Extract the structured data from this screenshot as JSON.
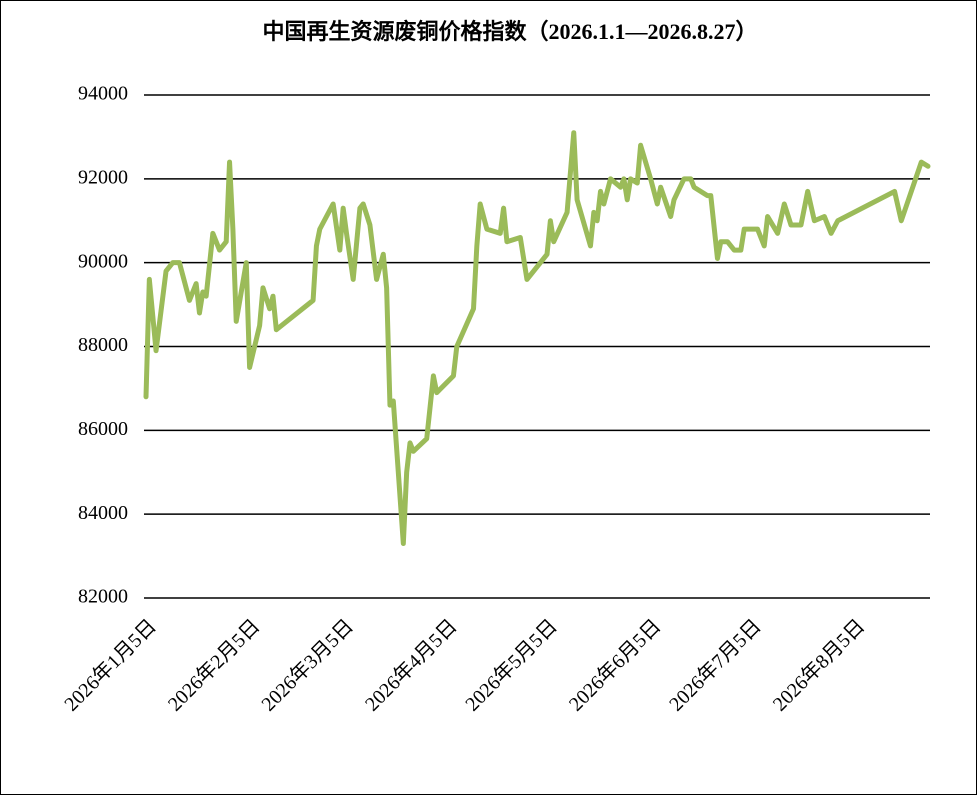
{
  "chart_data": {
    "type": "line",
    "title": "中国再生资源废铜价格指数（2026.1.1—2026.8.27）",
    "x": [
      "2026-01-05",
      "2026-01-06",
      "2026-01-08",
      "2026-01-11",
      "2026-01-13",
      "2026-01-15",
      "2026-01-18",
      "2026-01-20",
      "2026-01-21",
      "2026-01-22",
      "2026-01-23",
      "2026-01-25",
      "2026-01-27",
      "2026-01-29",
      "2026-01-30",
      "2026-01-31",
      "2026-02-01",
      "2026-02-04",
      "2026-02-05",
      "2026-02-08",
      "2026-02-09",
      "2026-02-11",
      "2026-02-12",
      "2026-02-13",
      "2026-02-24",
      "2026-02-25",
      "2026-02-26",
      "2026-03-02",
      "2026-03-04",
      "2026-03-05",
      "2026-03-06",
      "2026-03-08",
      "2026-03-10",
      "2026-03-11",
      "2026-03-13",
      "2026-03-15",
      "2026-03-17",
      "2026-03-18",
      "2026-03-19",
      "2026-03-20",
      "2026-03-23",
      "2026-03-24",
      "2026-03-25",
      "2026-03-26",
      "2026-03-30",
      "2026-04-01",
      "2026-04-02",
      "2026-04-07",
      "2026-04-08",
      "2026-04-13",
      "2026-04-14",
      "2026-04-15",
      "2026-04-17",
      "2026-04-21",
      "2026-04-22",
      "2026-04-23",
      "2026-04-27",
      "2026-04-29",
      "2026-05-05",
      "2026-05-06",
      "2026-05-07",
      "2026-05-11",
      "2026-05-13",
      "2026-05-14",
      "2026-05-18",
      "2026-05-19",
      "2026-05-20",
      "2026-05-21",
      "2026-05-22",
      "2026-05-24",
      "2026-05-27",
      "2026-05-28",
      "2026-05-29",
      "2026-05-30",
      "2026-06-01",
      "2026-06-02",
      "2026-06-05",
      "2026-06-07",
      "2026-06-08",
      "2026-06-11",
      "2026-06-12",
      "2026-06-15",
      "2026-06-17",
      "2026-06-18",
      "2026-06-22",
      "2026-06-23",
      "2026-06-25",
      "2026-06-26",
      "2026-06-28",
      "2026-06-30",
      "2026-07-02",
      "2026-07-03",
      "2026-07-07",
      "2026-07-09",
      "2026-07-10",
      "2026-07-13",
      "2026-07-15",
      "2026-07-17",
      "2026-07-20",
      "2026-07-22",
      "2026-07-24",
      "2026-07-27",
      "2026-07-29",
      "2026-07-31",
      "2026-08-17",
      "2026-08-19",
      "2026-08-25",
      "2026-08-27"
    ],
    "series": [
      {
        "color": "#9bbb59",
        "values": [
          86800,
          89600,
          87900,
          89800,
          90000,
          90000,
          89100,
          89500,
          88800,
          89300,
          89200,
          90700,
          90300,
          90500,
          92400,
          90800,
          88600,
          90000,
          87500,
          88500,
          89400,
          88900,
          89200,
          88400,
          89100,
          90400,
          90800,
          91400,
          90300,
          91300,
          90700,
          89600,
          91300,
          91400,
          90900,
          89600,
          90200,
          89400,
          86600,
          86700,
          83300,
          85000,
          85700,
          85500,
          85800,
          87300,
          86900,
          87300,
          88000,
          88900,
          90400,
          91400,
          90800,
          90700,
          91300,
          90500,
          90600,
          89600,
          90200,
          91000,
          90500,
          91200,
          93100,
          91500,
          90400,
          91200,
          91000,
          91700,
          91400,
          92000,
          91800,
          92000,
          91500,
          92000,
          91900,
          92800,
          92000,
          91400,
          91800,
          91100,
          91500,
          92000,
          92000,
          91800,
          91600,
          91600,
          90100,
          90500,
          90500,
          90300,
          90300,
          90800,
          90800,
          90400,
          91100,
          90700,
          91400,
          90900,
          90900,
          91700,
          91000,
          91100,
          90700,
          91000,
          91700,
          91000,
          92400,
          92300
        ]
      }
    ],
    "xlim": [
      "2026-01-05",
      "2026-08-27"
    ],
    "xticks": [
      {
        "value": "2026-01-05",
        "label": "2026年1月5日"
      },
      {
        "value": "2026-02-05",
        "label": "2026年2月5日"
      },
      {
        "value": "2026-03-05",
        "label": "2026年3月5日"
      },
      {
        "value": "2026-04-05",
        "label": "2026年4月5日"
      },
      {
        "value": "2026-05-05",
        "label": "2026年5月5日"
      },
      {
        "value": "2026-06-05",
        "label": "2026年6月5日"
      },
      {
        "value": "2026-07-05",
        "label": "2026年7月5日"
      },
      {
        "value": "2026-08-05",
        "label": "2026年8月5日"
      }
    ],
    "ylim": [
      82000,
      94000
    ],
    "yticks": [
      82000,
      84000,
      86000,
      88000,
      90000,
      92000,
      94000
    ],
    "grid": true
  }
}
